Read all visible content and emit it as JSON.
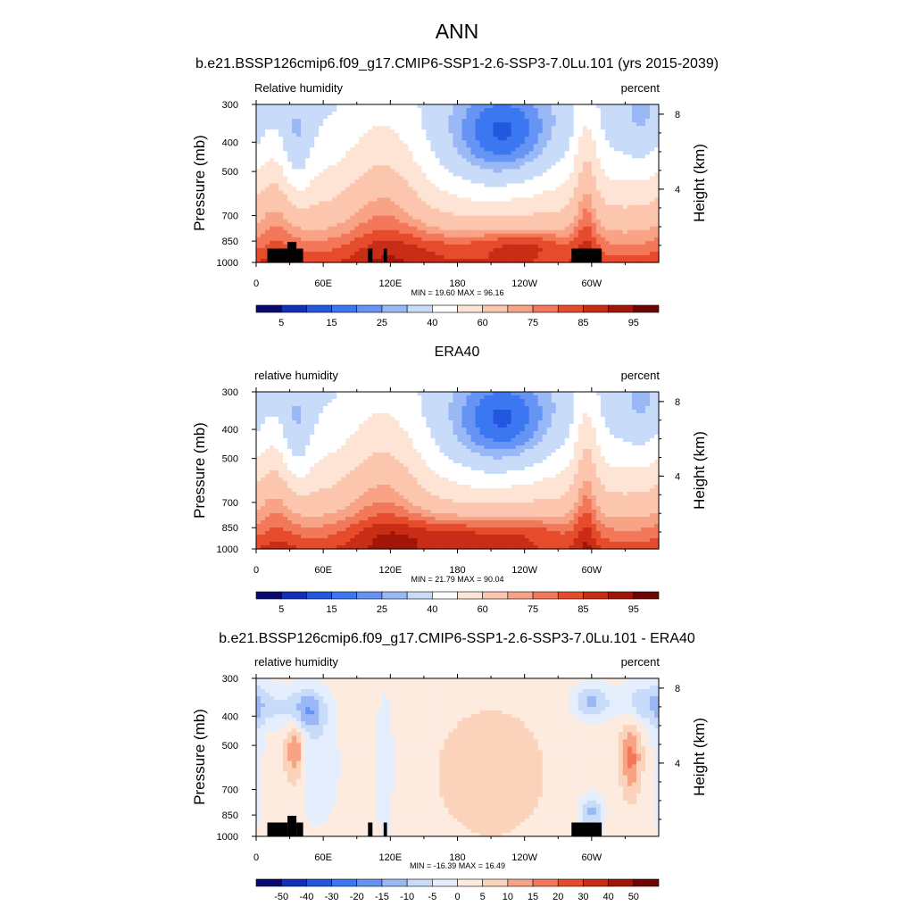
{
  "title": "ANN",
  "colors": {
    "rh_levels": [
      "#08086e",
      "#1030b8",
      "#2457e0",
      "#3b77f0",
      "#6694f4",
      "#9ab8f6",
      "#c8dcfa",
      "#ffffff",
      "#fde4d4",
      "#fbc6ad",
      "#f8a386",
      "#f3785a",
      "#e64c2c",
      "#c92d16",
      "#a2160a",
      "#6e0502"
    ],
    "diff_levels": [
      "#08086e",
      "#1030b8",
      "#2457e0",
      "#3b77f0",
      "#6694f4",
      "#9ab8f6",
      "#c8dcfa",
      "#e4eefc",
      "#fdebe0",
      "#fbd2ba",
      "#f8a386",
      "#f3785a",
      "#e64c2c",
      "#c92d16",
      "#a2160a",
      "#6e0502"
    ]
  },
  "panels": [
    {
      "title": "b.e21.BSSP126cmip6.f09_g17.CMIP6-SSP1-2.6-SSP3-7.0Lu.101 (yrs 2015-2039)",
      "left_label": "Relative humidity",
      "right_label": "percent",
      "stats": "MIN =  19.60  MAX =  96.16",
      "colorbar_labels": [
        "5",
        "15",
        "25",
        "40",
        "60",
        "75",
        "85",
        "95"
      ]
    },
    {
      "title": "ERA40",
      "left_label": "relative humidity",
      "right_label": "percent",
      "stats": "MIN =  21.79  MAX =  90.04",
      "colorbar_labels": [
        "5",
        "15",
        "25",
        "40",
        "60",
        "75",
        "85",
        "95"
      ]
    },
    {
      "title": "b.e21.BSSP126cmip6.f09_g17.CMIP6-SSP1-2.6-SSP3-7.0Lu.101 - ERA40",
      "left_label": "relative humidity",
      "right_label": "percent",
      "stats": "MIN = -16.39  MAX =  16.49",
      "colorbar_labels": [
        "-50",
        "-40",
        "-30",
        "-20",
        "-15",
        "-10",
        "-5",
        "0",
        "5",
        "10",
        "15",
        "20",
        "30",
        "40",
        "50"
      ]
    }
  ],
  "chart_data": [
    {
      "type": "heatmap",
      "title": "b.e21.BSSP126cmip6.f09_g17.CMIP6-SSP1-2.6-SSP3-7.0Lu.101 (yrs 2015-2039)",
      "variable": "Relative humidity",
      "units": "percent",
      "xlabel": "",
      "ylabel": "Pressure (mb)",
      "y2label": "Height (km)",
      "x_ticks": [
        "0",
        "60E",
        "120E",
        "180",
        "120W",
        "60W"
      ],
      "x_tick_values": [
        0,
        60,
        120,
        180,
        240,
        300
      ],
      "xlim": [
        0,
        360
      ],
      "y_ticks": [
        "300",
        "400",
        "500",
        "700",
        "850",
        "1000"
      ],
      "y_tick_values": [
        300,
        400,
        500,
        700,
        850,
        1000
      ],
      "ylim": [
        1000,
        300
      ],
      "y_scale": "log",
      "y2_ticks": [
        "8",
        "4"
      ],
      "y2_tick_values": [
        8,
        4
      ],
      "min": 19.6,
      "max": 96.16,
      "contour_levels": [
        5,
        10,
        15,
        20,
        25,
        30,
        40,
        50,
        60,
        70,
        75,
        80,
        85,
        90,
        95
      ],
      "terrain": [
        [
          10,
          28,
          900
        ],
        [
          28,
          36,
          855
        ],
        [
          36,
          42,
          900
        ],
        [
          100,
          104,
          900
        ],
        [
          114,
          117,
          900
        ],
        [
          282,
          309,
          900
        ]
      ]
    },
    {
      "type": "heatmap",
      "title": "ERA40",
      "variable": "relative humidity",
      "units": "percent",
      "xlabel": "",
      "ylabel": "Pressure (mb)",
      "y2label": "Height (km)",
      "x_ticks": [
        "0",
        "60E",
        "120E",
        "180",
        "120W",
        "60W"
      ],
      "x_tick_values": [
        0,
        60,
        120,
        180,
        240,
        300
      ],
      "xlim": [
        0,
        360
      ],
      "y_ticks": [
        "300",
        "400",
        "500",
        "700",
        "850",
        "1000"
      ],
      "y_tick_values": [
        300,
        400,
        500,
        700,
        850,
        1000
      ],
      "ylim": [
        1000,
        300
      ],
      "y_scale": "log",
      "y2_ticks": [
        "8",
        "4"
      ],
      "y2_tick_values": [
        8,
        4
      ],
      "min": 21.79,
      "max": 90.04,
      "contour_levels": [
        5,
        10,
        15,
        20,
        25,
        30,
        40,
        50,
        60,
        70,
        75,
        80,
        85,
        90,
        95
      ],
      "terrain": []
    },
    {
      "type": "heatmap",
      "title": "b.e21.BSSP126cmip6.f09_g17.CMIP6-SSP1-2.6-SSP3-7.0Lu.101 - ERA40",
      "variable": "relative humidity",
      "units": "percent",
      "xlabel": "",
      "ylabel": "Pressure (mb)",
      "y2label": "Height (km)",
      "x_ticks": [
        "0",
        "60E",
        "120E",
        "180",
        "120W",
        "60W"
      ],
      "x_tick_values": [
        0,
        60,
        120,
        180,
        240,
        300
      ],
      "xlim": [
        0,
        360
      ],
      "y_ticks": [
        "300",
        "400",
        "500",
        "700",
        "850",
        "1000"
      ],
      "y_tick_values": [
        300,
        400,
        500,
        700,
        850,
        1000
      ],
      "ylim": [
        1000,
        300
      ],
      "y_scale": "log",
      "y2_ticks": [
        "8",
        "4"
      ],
      "y2_tick_values": [
        8,
        4
      ],
      "min": -16.39,
      "max": 16.49,
      "contour_levels": [
        -50,
        -40,
        -30,
        -20,
        -15,
        -10,
        -5,
        0,
        5,
        10,
        15,
        20,
        30,
        40,
        50
      ],
      "terrain": [
        [
          10,
          28,
          900
        ],
        [
          28,
          36,
          855
        ],
        [
          36,
          42,
          900
        ],
        [
          100,
          104,
          900
        ],
        [
          114,
          117,
          900
        ],
        [
          282,
          309,
          900
        ]
      ]
    }
  ]
}
